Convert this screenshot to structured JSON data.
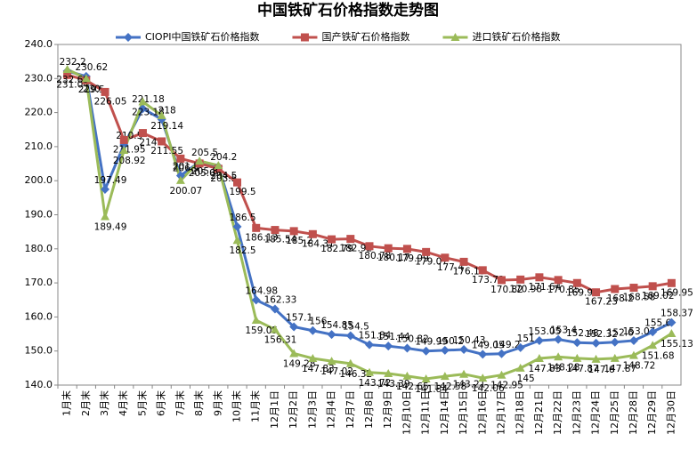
{
  "chart_data": {
    "type": "line",
    "title": "中国铁矿石价格指数走势图",
    "categories": [
      "1月末",
      "2月末",
      "3月末",
      "4月末",
      "5月末",
      "6月末",
      "7月末",
      "8月末",
      "9月末",
      "10月末",
      "11月末",
      "12月1日",
      "12月2日",
      "12月3日",
      "12月4日",
      "12月7日",
      "12月8日",
      "12月9日",
      "12月10日",
      "12月11日",
      "12月14日",
      "12月15日",
      "12月16日",
      "12月17日",
      "12月18日",
      "12月21日",
      "12月22日",
      "12月23日",
      "12月24日",
      "12月25日",
      "12月28日",
      "12月29日",
      "12月30日"
    ],
    "series": [
      {
        "name": "CIOPI中国铁矿石价格指数",
        "color": "#4472c4",
        "marker": "diamond",
        "values": [
          232.2,
          230.62,
          197.49,
          210.5,
          221.18,
          218,
          201.5,
          205.5,
          204.2,
          186.5,
          164.98,
          162.33,
          157.1,
          156,
          154.85,
          154.5,
          151.84,
          151.44,
          150.82,
          149.99,
          150.2,
          150.43,
          149.05,
          149.2,
          151,
          153.05,
          153.4,
          152.48,
          152.32,
          152.6,
          153.07,
          155.6,
          158.37
        ]
      },
      {
        "name": "国产铁矿石价格指数",
        "color": "#c0504d",
        "marker": "square",
        "values": [
          231.04,
          229.5,
          226.05,
          211.95,
          214,
          211.55,
          206.5,
          205.05,
          203.5,
          199.5,
          186.13,
          185.54,
          185.2,
          184.31,
          182.79,
          182.92,
          180.78,
          180.17,
          179.99,
          179.07,
          177.4,
          176.19,
          173.72,
          170.82,
          170.98,
          171.64,
          170.85,
          169.96,
          167.23,
          168.2,
          168.58,
          169.02,
          169.95
        ]
      },
      {
        "name": "进口铁矿石价格指数",
        "color": "#9bbb59",
        "marker": "triangle",
        "values": [
          232.69,
          230,
          189.49,
          208.92,
          223.18,
          219.14,
          200.07,
          205.8,
          204.5,
          182.5,
          159.05,
          156.31,
          149.28,
          147.83,
          147.02,
          146.32,
          143.72,
          143.39,
          142.65,
          141.84,
          142.58,
          143.21,
          142.06,
          142.95,
          145,
          147.83,
          148.28,
          147.87,
          147.6,
          147.87,
          148.72,
          151.68,
          155.13
        ]
      }
    ],
    "ylim": [
      140,
      240
    ],
    "yticks": [
      {
        "value": 140,
        "label": "140.0"
      },
      {
        "value": 150,
        "label": "150.0"
      },
      {
        "value": 160,
        "label": "160.0"
      },
      {
        "value": 170,
        "label": "170.0"
      },
      {
        "value": 180,
        "label": "180.0"
      },
      {
        "value": 190,
        "label": "190.0"
      },
      {
        "value": 200,
        "label": "200.0"
      },
      {
        "value": 210,
        "label": "210.0"
      },
      {
        "value": 220,
        "label": "220.0"
      },
      {
        "value": 230,
        "label": "230.0"
      },
      {
        "value": 240,
        "label": "240.0"
      }
    ],
    "grid": false,
    "legend": "top"
  }
}
